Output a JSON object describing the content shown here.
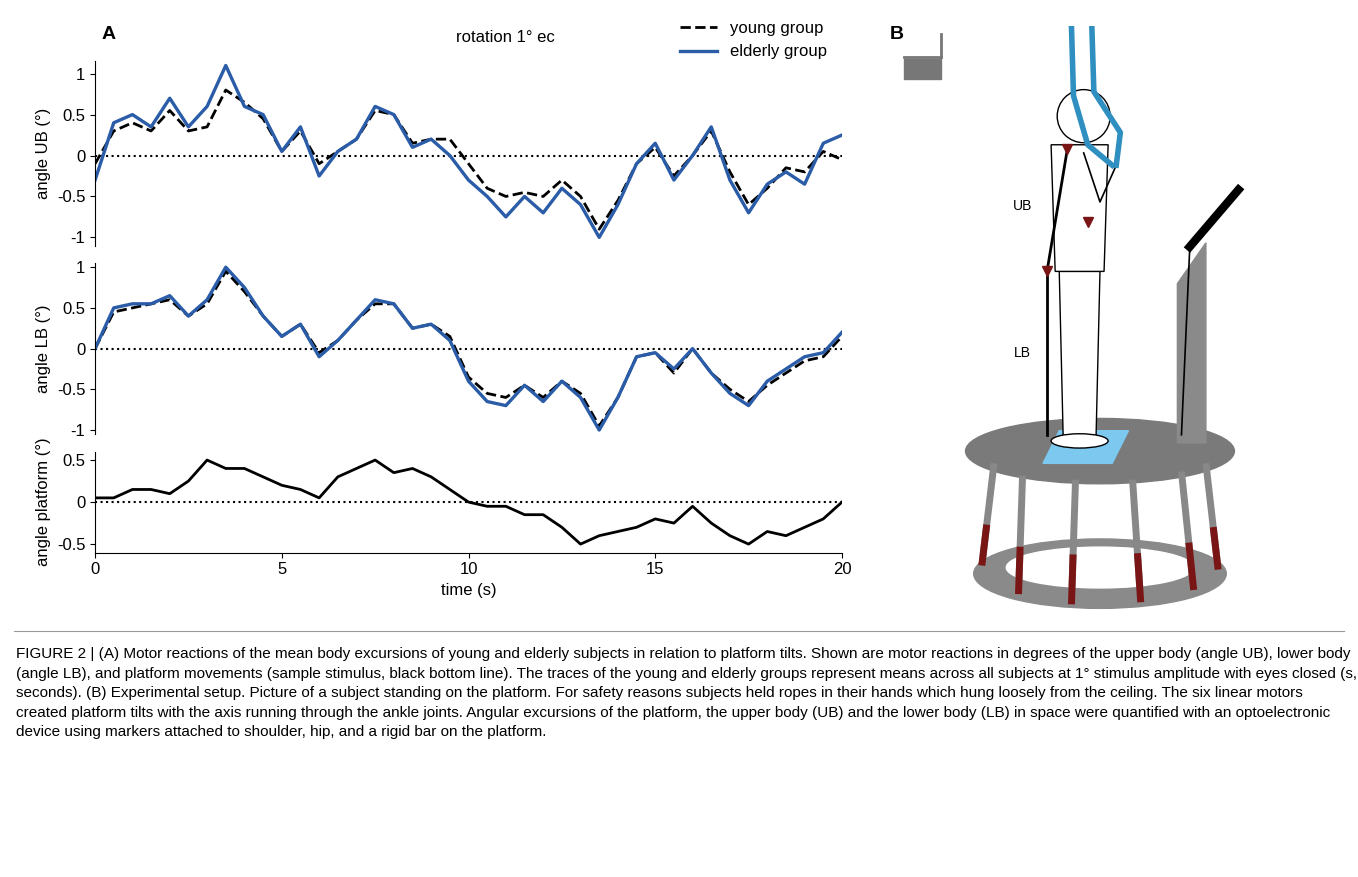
{
  "panel_labels": [
    "A",
    "B"
  ],
  "chart_data": [
    {
      "type": "line",
      "title": "rotation 1° ec",
      "y_label": "angle UB (°)",
      "legend": "upper right",
      "tick_labels": "y",
      "xlim": [
        0,
        20
      ],
      "ylim": [
        -1.1,
        1.15
      ],
      "yticks": [
        -1,
        -0.5,
        0,
        0.5,
        1
      ],
      "x": [
        0,
        0.5,
        1,
        1.5,
        2,
        2.5,
        3,
        3.5,
        4,
        4.5,
        5,
        5.5,
        6,
        6.5,
        7,
        7.5,
        8,
        8.5,
        9,
        9.5,
        10,
        10.5,
        11,
        11.5,
        12,
        12.5,
        13,
        13.5,
        14,
        14.5,
        15,
        15.5,
        16,
        16.5,
        17,
        17.5,
        18,
        18.5,
        19,
        19.5,
        20
      ],
      "series": [
        {
          "name": "young group",
          "color": "#000000",
          "line_style": "dashed",
          "values": [
            -0.1,
            0.3,
            0.4,
            0.3,
            0.55,
            0.3,
            0.35,
            0.8,
            0.65,
            0.45,
            0.05,
            0.3,
            -0.1,
            0.05,
            0.2,
            0.55,
            0.5,
            0.15,
            0.2,
            0.2,
            -0.1,
            -0.4,
            -0.5,
            -0.45,
            -0.5,
            -0.3,
            -0.5,
            -0.9,
            -0.55,
            -0.1,
            0.1,
            -0.25,
            0.0,
            0.3,
            -0.2,
            -0.6,
            -0.4,
            -0.15,
            -0.2,
            0.05,
            -0.05
          ]
        },
        {
          "name": "elderly group",
          "color": "#2a5ca8",
          "line_style": "solid",
          "values": [
            -0.3,
            0.4,
            0.5,
            0.35,
            0.7,
            0.35,
            0.6,
            1.1,
            0.6,
            0.5,
            0.05,
            0.35,
            -0.25,
            0.05,
            0.2,
            0.6,
            0.5,
            0.1,
            0.2,
            0.0,
            -0.3,
            -0.5,
            -0.75,
            -0.5,
            -0.7,
            -0.4,
            -0.6,
            -1.0,
            -0.6,
            -0.1,
            0.15,
            -0.3,
            0.0,
            0.35,
            -0.3,
            -0.7,
            -0.35,
            -0.2,
            -0.35,
            0.15,
            0.25
          ]
        }
      ]
    },
    {
      "type": "line",
      "y_label": "angle LB (°)",
      "tick_labels": "y",
      "xlim": [
        0,
        20
      ],
      "ylim": [
        -1.05,
        1.05
      ],
      "yticks": [
        -1,
        -0.5,
        0,
        0.5,
        1
      ],
      "x": [
        0,
        0.5,
        1,
        1.5,
        2,
        2.5,
        3,
        3.5,
        4,
        4.5,
        5,
        5.5,
        6,
        6.5,
        7,
        7.5,
        8,
        8.5,
        9,
        9.5,
        10,
        10.5,
        11,
        11.5,
        12,
        12.5,
        13,
        13.5,
        14,
        14.5,
        15,
        15.5,
        16,
        16.5,
        17,
        17.5,
        18,
        18.5,
        19,
        19.5,
        20
      ],
      "series": [
        {
          "name": "young group",
          "color": "#000000",
          "line_style": "dashed",
          "values": [
            0.0,
            0.45,
            0.5,
            0.55,
            0.6,
            0.4,
            0.55,
            0.95,
            0.7,
            0.4,
            0.15,
            0.3,
            -0.05,
            0.1,
            0.35,
            0.55,
            0.55,
            0.25,
            0.3,
            0.15,
            -0.35,
            -0.55,
            -0.6,
            -0.45,
            -0.6,
            -0.4,
            -0.55,
            -0.95,
            -0.6,
            -0.1,
            -0.05,
            -0.3,
            0.0,
            -0.3,
            -0.5,
            -0.65,
            -0.45,
            -0.3,
            -0.15,
            -0.1,
            0.15
          ]
        },
        {
          "name": "elderly group",
          "color": "#2a5ca8",
          "line_style": "solid",
          "values": [
            0.0,
            0.5,
            0.55,
            0.55,
            0.65,
            0.4,
            0.6,
            1.0,
            0.75,
            0.4,
            0.15,
            0.3,
            -0.1,
            0.1,
            0.35,
            0.6,
            0.55,
            0.25,
            0.3,
            0.1,
            -0.4,
            -0.65,
            -0.7,
            -0.45,
            -0.65,
            -0.4,
            -0.6,
            -1.0,
            -0.6,
            -0.1,
            -0.05,
            -0.25,
            0.0,
            -0.3,
            -0.55,
            -0.7,
            -0.4,
            -0.25,
            -0.1,
            -0.05,
            0.2
          ]
        }
      ]
    },
    {
      "type": "line",
      "y_label": "angle platform (°)",
      "x_label": "time (s)",
      "xlim": [
        0,
        20
      ],
      "ylim": [
        -0.6,
        0.6
      ],
      "xticks": [
        0,
        5,
        10,
        15,
        20
      ],
      "yticks": [
        -0.5,
        0,
        0.5
      ],
      "x": [
        0,
        0.5,
        1,
        1.5,
        2,
        2.5,
        3,
        3.5,
        4,
        4.5,
        5,
        5.5,
        6,
        6.5,
        7,
        7.5,
        8,
        8.5,
        9,
        9.5,
        10,
        10.5,
        11,
        11.5,
        12,
        12.5,
        13,
        13.5,
        14,
        14.5,
        15,
        15.5,
        16,
        16.5,
        17,
        17.5,
        18,
        18.5,
        19,
        19.5,
        20
      ],
      "series": [
        {
          "color": "#000000",
          "line_style": "solid",
          "values": [
            0.05,
            0.05,
            0.15,
            0.15,
            0.1,
            0.25,
            0.5,
            0.4,
            0.4,
            0.3,
            0.2,
            0.15,
            0.05,
            0.3,
            0.4,
            0.5,
            0.35,
            0.4,
            0.3,
            0.15,
            0.0,
            -0.05,
            -0.05,
            -0.15,
            -0.15,
            -0.3,
            -0.5,
            -0.4,
            -0.35,
            -0.3,
            -0.2,
            -0.25,
            -0.05,
            -0.25,
            -0.4,
            -0.5,
            -0.35,
            -0.4,
            -0.3,
            -0.2,
            0.0
          ]
        }
      ]
    }
  ],
  "diagram": {
    "labels": [
      "UB",
      "LB"
    ]
  },
  "caption": "FIGURE 2 | (A) Motor reactions of the mean body excursions of young and elderly subjects in relation to platform tilts. Shown are motor reactions in degrees of the upper body (angle UB), lower body (angle LB), and platform movements (sample stimulus, black bottom line). The traces of the young and elderly groups represent means across all subjects at 1° stimulus amplitude with eyes closed (s, seconds). (B) Experimental setup. Picture of a subject standing on the platform. For safety reasons subjects held ropes in their hands which hung loosely from the ceiling. The six linear motors created platform tilts with the axis running through the ankle joints. Angular excursions of the platform, the upper body (UB) and the lower body (LB) in space were quantified with an optoelectronic device using markers attached to shoulder, hip, and a rigid bar on the platform."
}
